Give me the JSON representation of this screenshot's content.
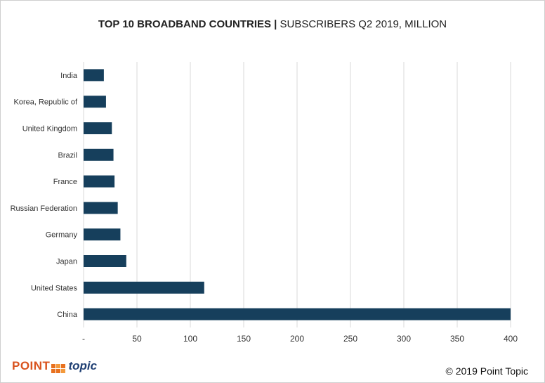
{
  "title": {
    "bold": "TOP 10 BROADBAND COUNTRIES |",
    "normal": "SUBSCRIBERS Q2 2019, MILLION"
  },
  "chart_data": {
    "type": "bar",
    "orientation": "horizontal",
    "title": "TOP 10 BROADBAND COUNTRIES | SUBSCRIBERS Q2 2019, MILLION",
    "categories": [
      "India",
      "Korea, Republic of",
      "United Kingdom",
      "Brazil",
      "France",
      "Russian Federation",
      "Germany",
      "Japan",
      "United States",
      "China"
    ],
    "values": [
      19,
      21,
      26.5,
      28,
      29,
      32,
      34.5,
      40,
      113,
      400
    ],
    "xlim": [
      0,
      400
    ],
    "xticks": [
      0,
      50,
      100,
      150,
      200,
      250,
      300,
      350,
      400
    ],
    "xtick_labels": [
      "-",
      "50",
      "100",
      "150",
      "200",
      "250",
      "300",
      "350",
      "400"
    ],
    "xlabel": "",
    "ylabel": "",
    "grid": true,
    "bar_color": "#163f5c",
    "grid_color": "#d9d9d9"
  },
  "footer": {
    "logo_point": "POINT",
    "logo_topic": "topic",
    "copyright": "© 2019 Point Topic"
  }
}
